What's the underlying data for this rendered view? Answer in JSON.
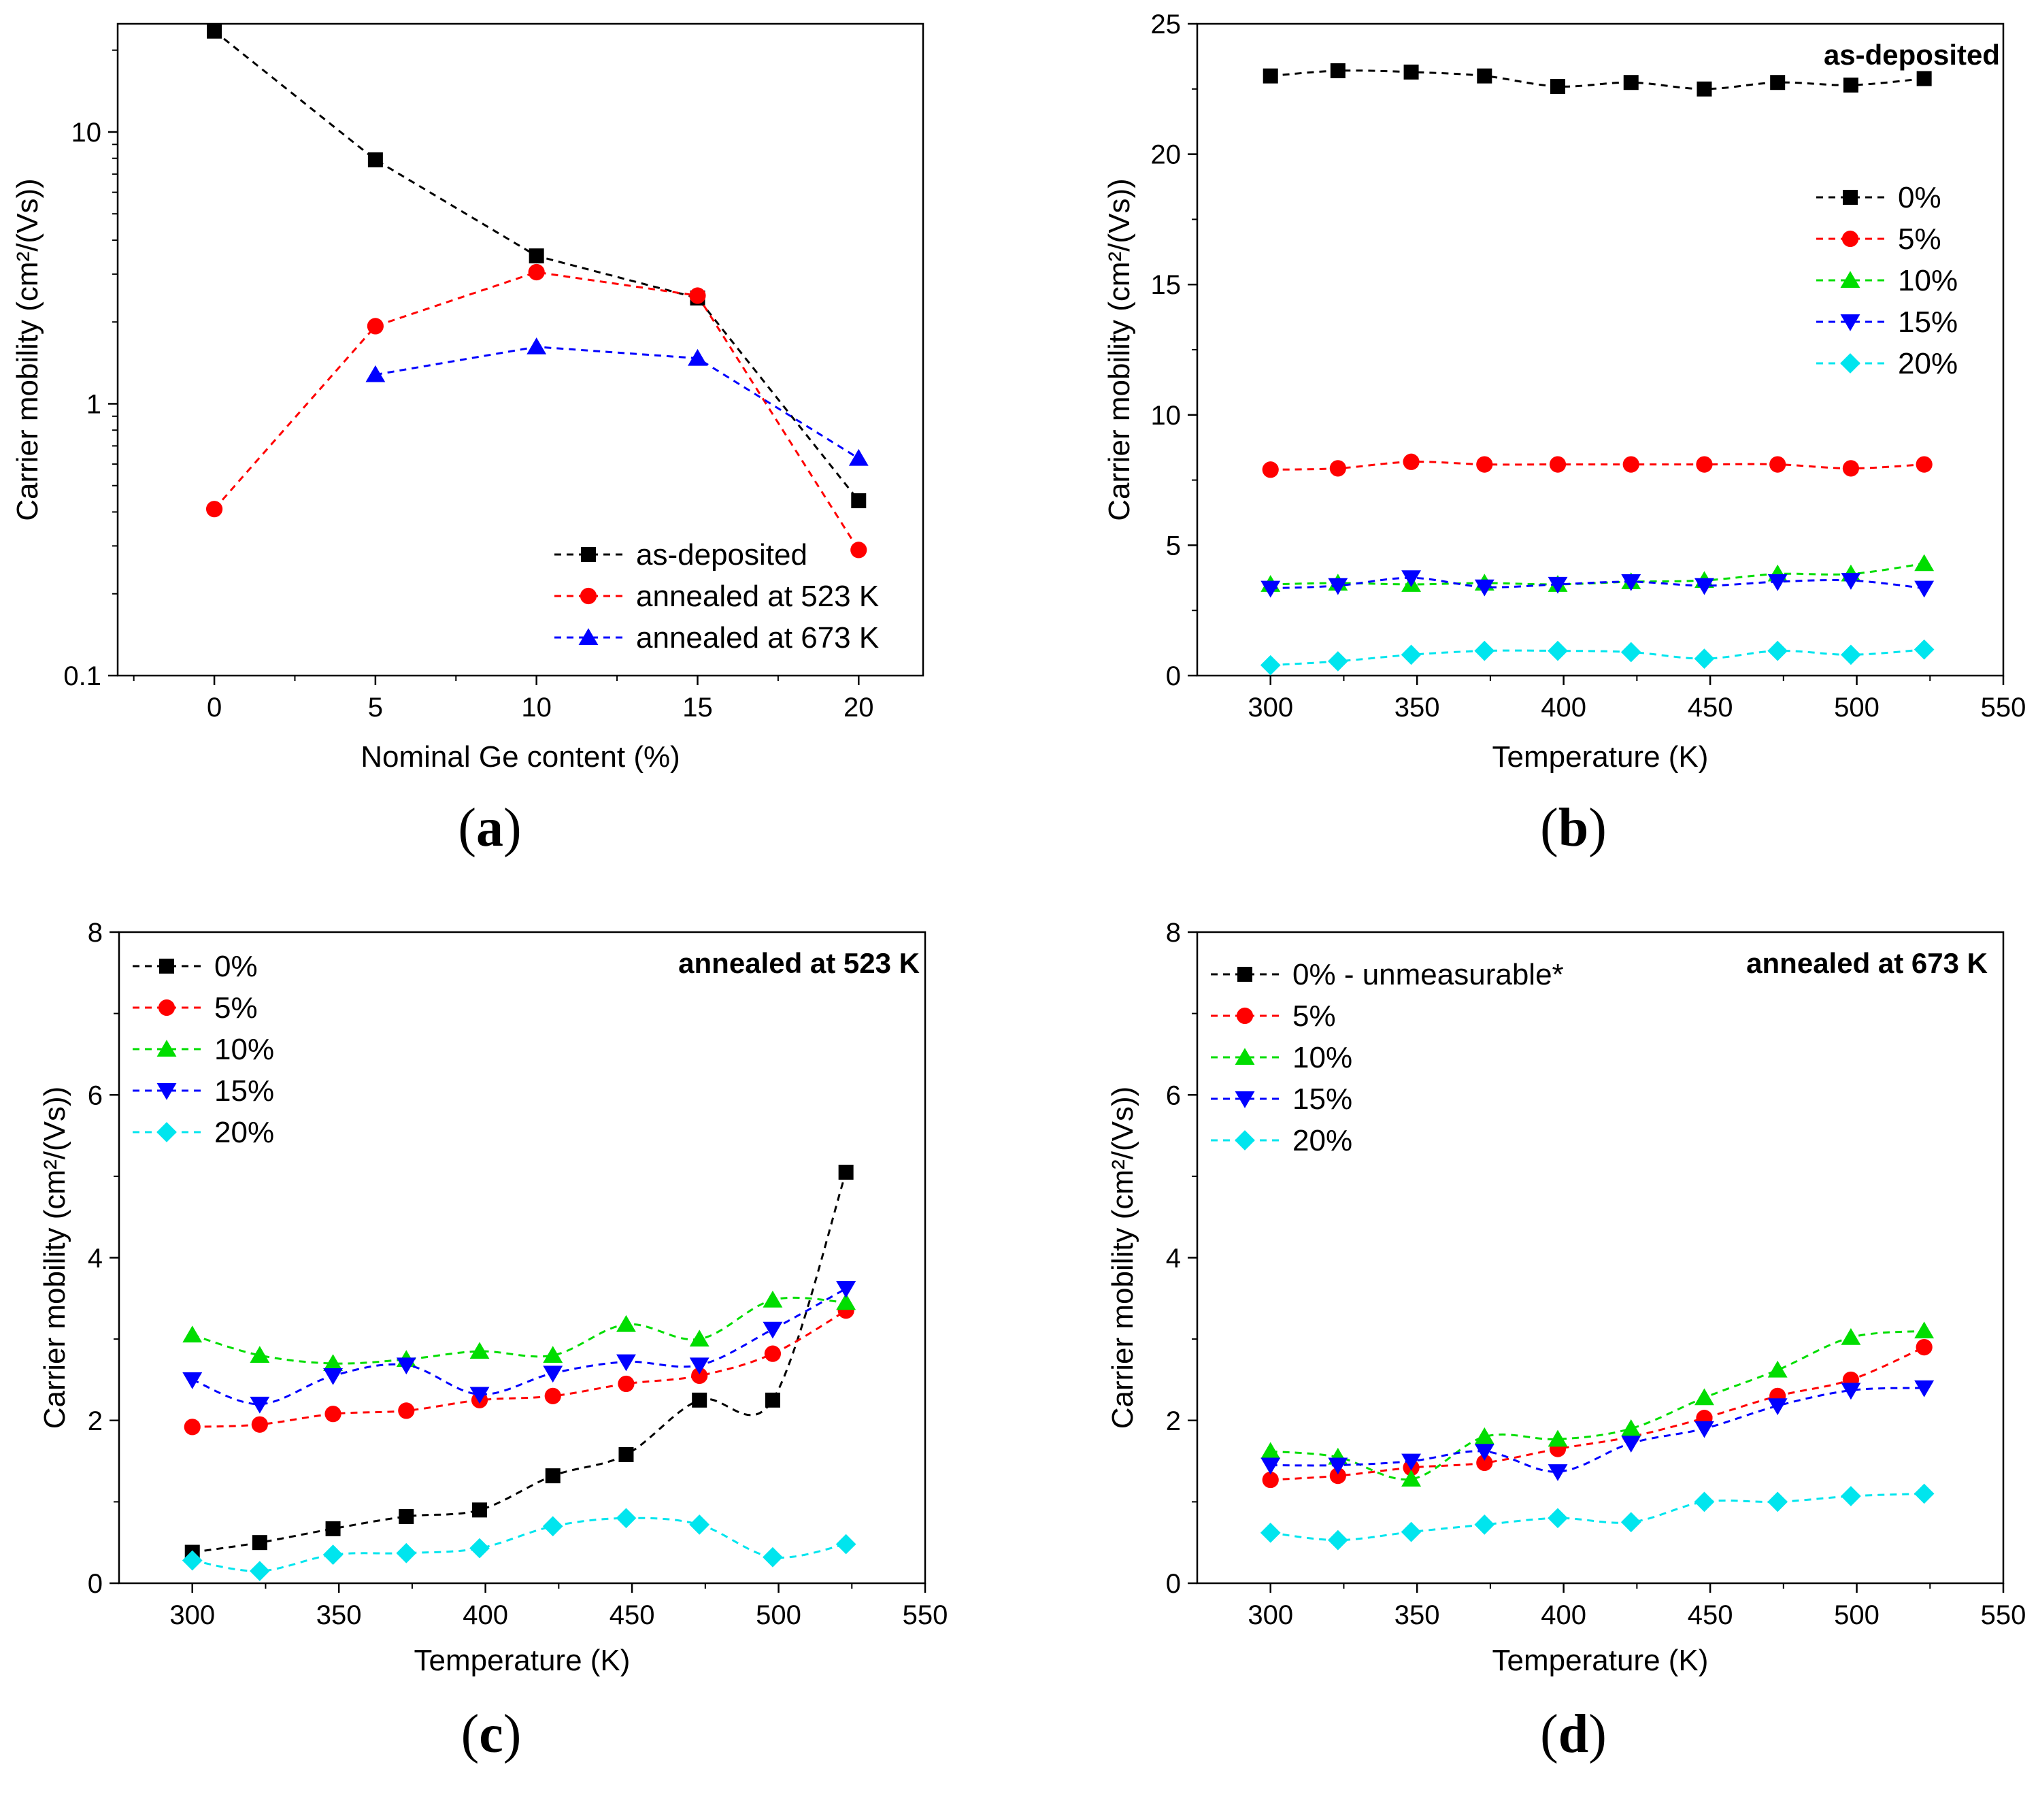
{
  "chart_data": [
    {
      "id": "a",
      "type": "line",
      "panel_label": "a",
      "title": "",
      "xlabel": "Nominal Ge content (%)",
      "ylabel": "Carrier mobility (cm²/(Vs))",
      "yscale": "log",
      "xlim": [
        -3,
        22
      ],
      "ylim": [
        0.1,
        25
      ],
      "xticks": [
        0,
        5,
        10,
        15,
        20
      ],
      "xtick_labels": [
        "0",
        "5",
        "10",
        "15",
        "20"
      ],
      "yticks": [
        0.1,
        1,
        10
      ],
      "ytick_labels": [
        "0.1",
        "1",
        "10"
      ],
      "legend_position": "bottom-right",
      "series": [
        {
          "name": "as-deposited",
          "color": "#000000",
          "marker": "square",
          "x": [
            0,
            5,
            10,
            15,
            20
          ],
          "y": [
            23.5,
            7.9,
            3.5,
            2.45,
            0.44
          ]
        },
        {
          "name": "annealed at 523 K",
          "color": "#ff0000",
          "marker": "circle",
          "x": [
            0,
            5,
            10,
            15,
            20
          ],
          "y": [
            0.41,
            1.93,
            3.05,
            2.5,
            0.29
          ]
        },
        {
          "name": "annealed at 673 K",
          "color": "#0000ff",
          "marker": "triangle-up",
          "x": [
            5,
            10,
            15,
            20
          ],
          "y": [
            1.28,
            1.62,
            1.47,
            0.63
          ]
        }
      ]
    },
    {
      "id": "b",
      "type": "line",
      "panel_label": "b",
      "title": "as-deposited",
      "xlabel": "Temperature (K)",
      "ylabel": "Carrier mobility (cm²/(Vs))",
      "yscale": "linear",
      "xlim": [
        275,
        550
      ],
      "ylim": [
        0,
        25
      ],
      "xticks": [
        300,
        350,
        400,
        450,
        500,
        550
      ],
      "xtick_labels": [
        "300",
        "350",
        "400",
        "450",
        "500",
        "550"
      ],
      "yticks": [
        0,
        5,
        10,
        15,
        20,
        25
      ],
      "ytick_labels": [
        "0",
        "5",
        "10",
        "15",
        "20",
        "25"
      ],
      "legend_position": "top-right",
      "series": [
        {
          "name": "0%",
          "color": "#000000",
          "marker": "square",
          "x": [
            300,
            323,
            348,
            373,
            398,
            423,
            448,
            473,
            498,
            523
          ],
          "y": [
            23.0,
            23.2,
            23.15,
            23.0,
            22.6,
            22.75,
            22.5,
            22.75,
            22.65,
            22.9
          ]
        },
        {
          "name": "5%",
          "color": "#ff0000",
          "marker": "circle",
          "x": [
            300,
            323,
            348,
            373,
            398,
            423,
            448,
            473,
            498,
            523
          ],
          "y": [
            7.9,
            7.95,
            8.2,
            8.1,
            8.1,
            8.1,
            8.1,
            8.1,
            7.95,
            8.1
          ]
        },
        {
          "name": "10%",
          "color": "#00dd00",
          "marker": "triangle-up",
          "x": [
            300,
            323,
            348,
            373,
            398,
            423,
            448,
            473,
            498,
            523
          ],
          "y": [
            3.5,
            3.55,
            3.5,
            3.55,
            3.5,
            3.6,
            3.65,
            3.9,
            3.9,
            4.3
          ]
        },
        {
          "name": "15%",
          "color": "#0000ff",
          "marker": "triangle-down",
          "x": [
            300,
            323,
            348,
            373,
            398,
            423,
            448,
            473,
            498,
            523
          ],
          "y": [
            3.35,
            3.45,
            3.75,
            3.4,
            3.5,
            3.6,
            3.45,
            3.6,
            3.65,
            3.35
          ]
        },
        {
          "name": "20%",
          "color": "#00e5ee",
          "marker": "diamond",
          "x": [
            300,
            323,
            348,
            373,
            398,
            423,
            448,
            473,
            498,
            523
          ],
          "y": [
            0.4,
            0.55,
            0.8,
            0.95,
            0.95,
            0.9,
            0.65,
            0.95,
            0.8,
            1.0
          ]
        }
      ]
    },
    {
      "id": "c",
      "type": "line",
      "panel_label": "c",
      "title": "annealed at 523 K",
      "xlabel": "Temperature (K)",
      "ylabel": "Carrier mobility (cm²/(Vs))",
      "yscale": "linear",
      "xlim": [
        275,
        550
      ],
      "ylim": [
        0,
        8
      ],
      "xticks": [
        300,
        350,
        400,
        450,
        500,
        550
      ],
      "xtick_labels": [
        "300",
        "350",
        "400",
        "450",
        "500",
        "550"
      ],
      "yticks": [
        0,
        2,
        4,
        6,
        8
      ],
      "ytick_labels": [
        "0",
        "2",
        "4",
        "6",
        "8"
      ],
      "legend_position": "top-left",
      "series": [
        {
          "name": "0%",
          "color": "#000000",
          "marker": "square",
          "x": [
            300,
            323,
            348,
            373,
            398,
            423,
            448,
            473,
            498,
            523
          ],
          "y": [
            0.38,
            0.5,
            0.67,
            0.82,
            0.9,
            1.32,
            1.58,
            2.25,
            2.25,
            5.05
          ]
        },
        {
          "name": "5%",
          "color": "#ff0000",
          "marker": "circle",
          "x": [
            300,
            323,
            348,
            373,
            398,
            423,
            448,
            473,
            498,
            523
          ],
          "y": [
            1.92,
            1.95,
            2.08,
            2.12,
            2.25,
            2.3,
            2.45,
            2.55,
            2.82,
            3.35
          ]
        },
        {
          "name": "10%",
          "color": "#00dd00",
          "marker": "triangle-up",
          "x": [
            300,
            323,
            348,
            373,
            398,
            423,
            448,
            473,
            498,
            523
          ],
          "y": [
            3.05,
            2.8,
            2.7,
            2.75,
            2.85,
            2.8,
            3.18,
            3.0,
            3.48,
            3.45
          ]
        },
        {
          "name": "15%",
          "color": "#0000ff",
          "marker": "triangle-down",
          "x": [
            300,
            323,
            348,
            373,
            398,
            423,
            448,
            473,
            498,
            523
          ],
          "y": [
            2.5,
            2.2,
            2.55,
            2.68,
            2.32,
            2.58,
            2.72,
            2.68,
            3.12,
            3.62
          ]
        },
        {
          "name": "20%",
          "color": "#00e5ee",
          "marker": "diamond",
          "x": [
            300,
            323,
            348,
            373,
            398,
            423,
            448,
            473,
            498,
            523
          ],
          "y": [
            0.28,
            0.15,
            0.35,
            0.37,
            0.43,
            0.7,
            0.8,
            0.72,
            0.32,
            0.48
          ]
        }
      ]
    },
    {
      "id": "d",
      "type": "line",
      "panel_label": "d",
      "title": "annealed at 673 K",
      "xlabel": "Temperature (K)",
      "ylabel": "Carrier mobility (cm²/(Vs))",
      "yscale": "linear",
      "xlim": [
        275,
        550
      ],
      "ylim": [
        0,
        8
      ],
      "xticks": [
        300,
        350,
        400,
        450,
        500,
        550
      ],
      "xtick_labels": [
        "300",
        "350",
        "400",
        "450",
        "500",
        "550"
      ],
      "yticks": [
        0,
        2,
        4,
        6,
        8
      ],
      "ytick_labels": [
        "0",
        "2",
        "4",
        "6",
        "8"
      ],
      "legend_position": "top-left",
      "series": [
        {
          "name": "0% - unmeasurable*",
          "color": "#000000",
          "marker": "square",
          "x": [],
          "y": []
        },
        {
          "name": "5%",
          "color": "#ff0000",
          "marker": "circle",
          "x": [
            300,
            323,
            348,
            373,
            398,
            423,
            448,
            473,
            498,
            523
          ],
          "y": [
            1.27,
            1.32,
            1.42,
            1.48,
            1.65,
            1.8,
            2.03,
            2.3,
            2.5,
            2.9
          ]
        },
        {
          "name": "10%",
          "color": "#00dd00",
          "marker": "triangle-up",
          "x": [
            300,
            323,
            348,
            373,
            398,
            423,
            448,
            473,
            498,
            523
          ],
          "y": [
            1.62,
            1.55,
            1.28,
            1.8,
            1.77,
            1.9,
            2.28,
            2.62,
            3.02,
            3.1
          ]
        },
        {
          "name": "15%",
          "color": "#0000ff",
          "marker": "triangle-down",
          "x": [
            300,
            323,
            348,
            373,
            398,
            423,
            448,
            473,
            498,
            523
          ],
          "y": [
            1.45,
            1.45,
            1.5,
            1.62,
            1.37,
            1.72,
            1.9,
            2.18,
            2.37,
            2.4
          ]
        },
        {
          "name": "20%",
          "color": "#00e5ee",
          "marker": "diamond",
          "x": [
            300,
            323,
            348,
            373,
            398,
            423,
            448,
            473,
            498,
            523
          ],
          "y": [
            0.62,
            0.53,
            0.63,
            0.72,
            0.8,
            0.75,
            1.0,
            1.0,
            1.07,
            1.1
          ]
        }
      ]
    }
  ]
}
